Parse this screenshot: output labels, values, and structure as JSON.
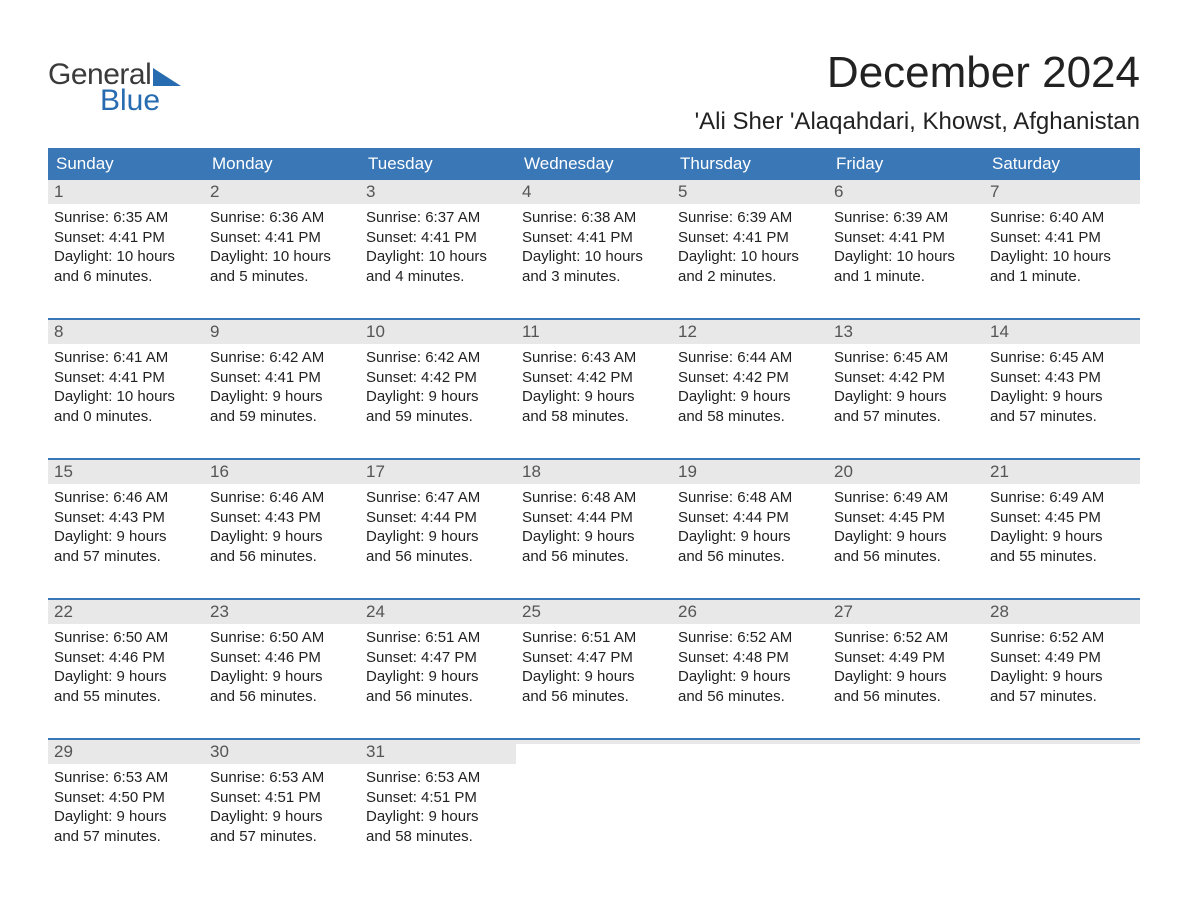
{
  "logo": {
    "word1": "General",
    "word2": "Blue",
    "gray": "#3b3b3b",
    "blue": "#276cb0"
  },
  "title": "December 2024",
  "location": "'Ali Sher 'Alaqahdari, Khowst, Afghanistan",
  "header_bg": "#3a77b6",
  "header_fg": "#ffffff",
  "daynum_bg": "#e8e8e8",
  "week_border": "#3a77b6",
  "day_headers": [
    "Sunday",
    "Monday",
    "Tuesday",
    "Wednesday",
    "Thursday",
    "Friday",
    "Saturday"
  ],
  "labels": {
    "sunrise": "Sunrise:",
    "sunset": "Sunset:",
    "daylight": "Daylight:"
  },
  "weeks": [
    [
      {
        "n": "1",
        "sunrise": "6:35 AM",
        "sunset": "4:41 PM",
        "daylight_l1": "10 hours",
        "daylight_l2": "and 6 minutes."
      },
      {
        "n": "2",
        "sunrise": "6:36 AM",
        "sunset": "4:41 PM",
        "daylight_l1": "10 hours",
        "daylight_l2": "and 5 minutes."
      },
      {
        "n": "3",
        "sunrise": "6:37 AM",
        "sunset": "4:41 PM",
        "daylight_l1": "10 hours",
        "daylight_l2": "and 4 minutes."
      },
      {
        "n": "4",
        "sunrise": "6:38 AM",
        "sunset": "4:41 PM",
        "daylight_l1": "10 hours",
        "daylight_l2": "and 3 minutes."
      },
      {
        "n": "5",
        "sunrise": "6:39 AM",
        "sunset": "4:41 PM",
        "daylight_l1": "10 hours",
        "daylight_l2": "and 2 minutes."
      },
      {
        "n": "6",
        "sunrise": "6:39 AM",
        "sunset": "4:41 PM",
        "daylight_l1": "10 hours",
        "daylight_l2": "and 1 minute."
      },
      {
        "n": "7",
        "sunrise": "6:40 AM",
        "sunset": "4:41 PM",
        "daylight_l1": "10 hours",
        "daylight_l2": "and 1 minute."
      }
    ],
    [
      {
        "n": "8",
        "sunrise": "6:41 AM",
        "sunset": "4:41 PM",
        "daylight_l1": "10 hours",
        "daylight_l2": "and 0 minutes."
      },
      {
        "n": "9",
        "sunrise": "6:42 AM",
        "sunset": "4:41 PM",
        "daylight_l1": "9 hours",
        "daylight_l2": "and 59 minutes."
      },
      {
        "n": "10",
        "sunrise": "6:42 AM",
        "sunset": "4:42 PM",
        "daylight_l1": "9 hours",
        "daylight_l2": "and 59 minutes."
      },
      {
        "n": "11",
        "sunrise": "6:43 AM",
        "sunset": "4:42 PM",
        "daylight_l1": "9 hours",
        "daylight_l2": "and 58 minutes."
      },
      {
        "n": "12",
        "sunrise": "6:44 AM",
        "sunset": "4:42 PM",
        "daylight_l1": "9 hours",
        "daylight_l2": "and 58 minutes."
      },
      {
        "n": "13",
        "sunrise": "6:45 AM",
        "sunset": "4:42 PM",
        "daylight_l1": "9 hours",
        "daylight_l2": "and 57 minutes."
      },
      {
        "n": "14",
        "sunrise": "6:45 AM",
        "sunset": "4:43 PM",
        "daylight_l1": "9 hours",
        "daylight_l2": "and 57 minutes."
      }
    ],
    [
      {
        "n": "15",
        "sunrise": "6:46 AM",
        "sunset": "4:43 PM",
        "daylight_l1": "9 hours",
        "daylight_l2": "and 57 minutes."
      },
      {
        "n": "16",
        "sunrise": "6:46 AM",
        "sunset": "4:43 PM",
        "daylight_l1": "9 hours",
        "daylight_l2": "and 56 minutes."
      },
      {
        "n": "17",
        "sunrise": "6:47 AM",
        "sunset": "4:44 PM",
        "daylight_l1": "9 hours",
        "daylight_l2": "and 56 minutes."
      },
      {
        "n": "18",
        "sunrise": "6:48 AM",
        "sunset": "4:44 PM",
        "daylight_l1": "9 hours",
        "daylight_l2": "and 56 minutes."
      },
      {
        "n": "19",
        "sunrise": "6:48 AM",
        "sunset": "4:44 PM",
        "daylight_l1": "9 hours",
        "daylight_l2": "and 56 minutes."
      },
      {
        "n": "20",
        "sunrise": "6:49 AM",
        "sunset": "4:45 PM",
        "daylight_l1": "9 hours",
        "daylight_l2": "and 56 minutes."
      },
      {
        "n": "21",
        "sunrise": "6:49 AM",
        "sunset": "4:45 PM",
        "daylight_l1": "9 hours",
        "daylight_l2": "and 55 minutes."
      }
    ],
    [
      {
        "n": "22",
        "sunrise": "6:50 AM",
        "sunset": "4:46 PM",
        "daylight_l1": "9 hours",
        "daylight_l2": "and 55 minutes."
      },
      {
        "n": "23",
        "sunrise": "6:50 AM",
        "sunset": "4:46 PM",
        "daylight_l1": "9 hours",
        "daylight_l2": "and 56 minutes."
      },
      {
        "n": "24",
        "sunrise": "6:51 AM",
        "sunset": "4:47 PM",
        "daylight_l1": "9 hours",
        "daylight_l2": "and 56 minutes."
      },
      {
        "n": "25",
        "sunrise": "6:51 AM",
        "sunset": "4:47 PM",
        "daylight_l1": "9 hours",
        "daylight_l2": "and 56 minutes."
      },
      {
        "n": "26",
        "sunrise": "6:52 AM",
        "sunset": "4:48 PM",
        "daylight_l1": "9 hours",
        "daylight_l2": "and 56 minutes."
      },
      {
        "n": "27",
        "sunrise": "6:52 AM",
        "sunset": "4:49 PM",
        "daylight_l1": "9 hours",
        "daylight_l2": "and 56 minutes."
      },
      {
        "n": "28",
        "sunrise": "6:52 AM",
        "sunset": "4:49 PM",
        "daylight_l1": "9 hours",
        "daylight_l2": "and 57 minutes."
      }
    ],
    [
      {
        "n": "29",
        "sunrise": "6:53 AM",
        "sunset": "4:50 PM",
        "daylight_l1": "9 hours",
        "daylight_l2": "and 57 minutes."
      },
      {
        "n": "30",
        "sunrise": "6:53 AM",
        "sunset": "4:51 PM",
        "daylight_l1": "9 hours",
        "daylight_l2": "and 57 minutes."
      },
      {
        "n": "31",
        "sunrise": "6:53 AM",
        "sunset": "4:51 PM",
        "daylight_l1": "9 hours",
        "daylight_l2": "and 58 minutes."
      },
      null,
      null,
      null,
      null
    ]
  ]
}
